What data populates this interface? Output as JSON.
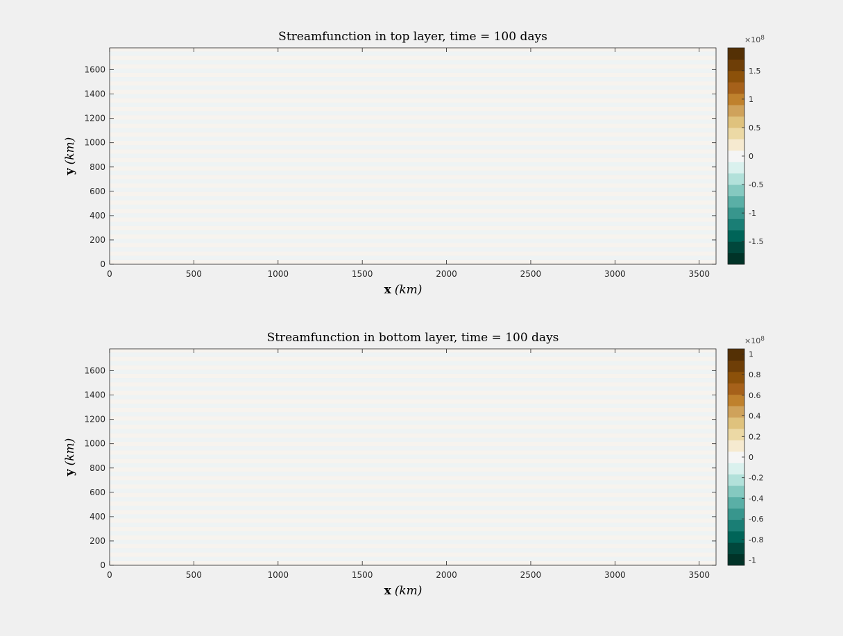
{
  "colors": {
    "figure_bg": "#f0f0f0",
    "band_warm": "#f7f3ee",
    "band_cool": "#eef3f4",
    "axis": "#262626",
    "colormap": [
      "#013328",
      "#01473c",
      "#006458",
      "#1a7e75",
      "#38968d",
      "#5aafa6",
      "#85c9c0",
      "#b2e1da",
      "#daf1ee",
      "#f5f5f5",
      "#f6ead0",
      "#ecd9a5",
      "#dfc27d",
      "#cfa25b",
      "#bf812d",
      "#a6611a",
      "#8c510a",
      "#6e3e07",
      "#543005"
    ]
  },
  "chart_data": [
    {
      "type": "heatmap",
      "title": "Streamfunction in top layer, time = 100 days",
      "xlabel_bold": "x",
      "xlabel_unit": "(km)",
      "ylabel_bold": "y",
      "ylabel_unit": "(km)",
      "xlim": [
        0,
        3600
      ],
      "ylim": [
        0,
        1780
      ],
      "x_ticks": [
        "0",
        "500",
        "1000",
        "1500",
        "2000",
        "2500",
        "3000",
        "3500"
      ],
      "x_tick_values": [
        0,
        500,
        1000,
        1500,
        2000,
        2500,
        3000,
        3500
      ],
      "y_ticks": [
        "0",
        "200",
        "400",
        "600",
        "800",
        "1000",
        "1200",
        "1400",
        "1600"
      ],
      "y_tick_values": [
        0,
        200,
        400,
        600,
        800,
        1000,
        1200,
        1400,
        1600
      ],
      "colorbar": {
        "exponent": "×10",
        "exponent_power": "8",
        "clim": [
          -1.9,
          1.9
        ],
        "ticks": [
          "-1.5",
          "-1",
          "-0.5",
          "0",
          "0.5",
          "1",
          "1.5"
        ],
        "tick_values": [
          -1.5,
          -1,
          -0.5,
          0,
          0.5,
          1,
          1.5
        ]
      },
      "bands": {
        "stripe_height": 35,
        "pattern": [
          "warm",
          "cool"
        ]
      }
    },
    {
      "type": "heatmap",
      "title": "Streamfunction in bottom layer, time = 100 days",
      "xlabel_bold": "x",
      "xlabel_unit": "(km)",
      "ylabel_bold": "y",
      "ylabel_unit": "(km)",
      "xlim": [
        0,
        3600
      ],
      "ylim": [
        0,
        1780
      ],
      "x_ticks": [
        "0",
        "500",
        "1000",
        "1500",
        "2000",
        "2500",
        "3000",
        "3500"
      ],
      "x_tick_values": [
        0,
        500,
        1000,
        1500,
        2000,
        2500,
        3000,
        3500
      ],
      "y_ticks": [
        "0",
        "200",
        "400",
        "600",
        "800",
        "1000",
        "1200",
        "1400",
        "1600"
      ],
      "y_tick_values": [
        0,
        200,
        400,
        600,
        800,
        1000,
        1200,
        1400,
        1600
      ],
      "colorbar": {
        "exponent": "×10",
        "exponent_power": "8",
        "clim": [
          -1.05,
          1.05
        ],
        "ticks": [
          "-1",
          "-0.8",
          "-0.6",
          "-0.4",
          "-0.2",
          "0",
          "0.2",
          "0.4",
          "0.6",
          "0.8",
          "1"
        ],
        "tick_values": [
          -1,
          -0.8,
          -0.6,
          -0.4,
          -0.2,
          0,
          0.2,
          0.4,
          0.6,
          0.8,
          1
        ]
      },
      "bands": {
        "stripe_height": 35,
        "pattern": [
          "warm",
          "cool"
        ]
      }
    }
  ]
}
